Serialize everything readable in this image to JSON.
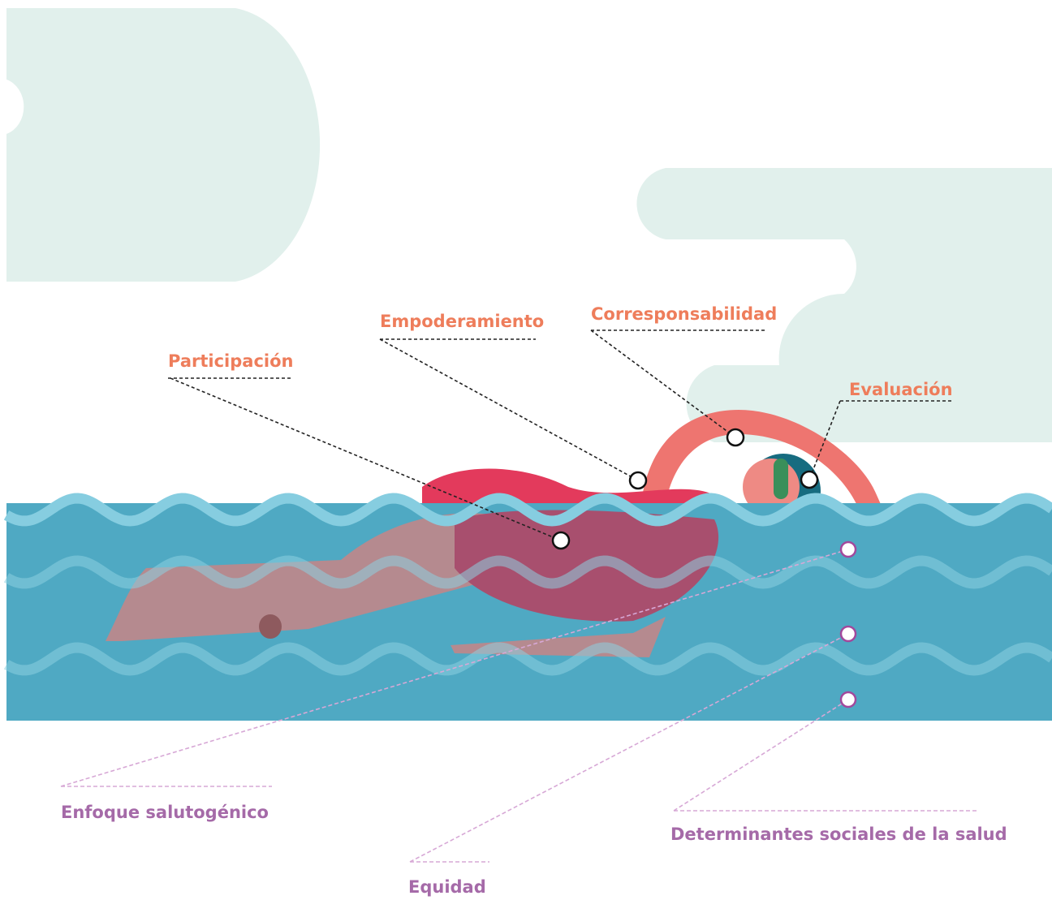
{
  "above_labels": [
    "Participación",
    "Empoderamiento",
    "Corresponsabilidad",
    "Evaluación"
  ],
  "below_labels": [
    "Enfoque salutogénico",
    "Equidad",
    "Determinantes sociales de la salud"
  ]
}
